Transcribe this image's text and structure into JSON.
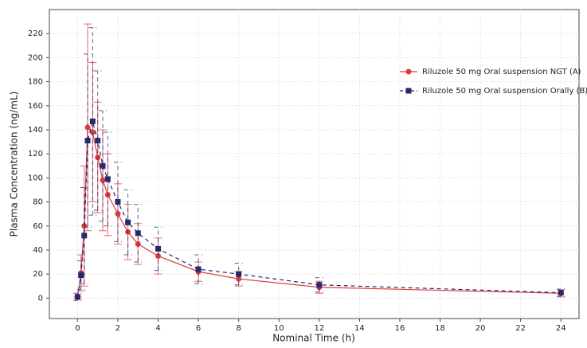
{
  "chart_data": {
    "type": "line",
    "x_label": "Nominal Time (h)",
    "y_label": "Plasma Concentration (ng/mL)",
    "x": [
      0,
      0.17,
      0.33,
      0.5,
      0.75,
      1,
      1.25,
      1.5,
      2,
      2.5,
      3,
      4,
      6,
      8,
      12,
      24
    ],
    "series": [
      {
        "name": "Riluzole 50 mg Oral suspension NGT (A)",
        "color": "#e0393b",
        "linestyle": "solid",
        "marker": "circle",
        "values": [
          0.5,
          21,
          60,
          142,
          138,
          117,
          98,
          86,
          70,
          55,
          45,
          35,
          22,
          16,
          9,
          4
        ],
        "errors": [
          1,
          15,
          50,
          86,
          58,
          46,
          42,
          34,
          25,
          23,
          17,
          15,
          8,
          6,
          5,
          3
        ]
      },
      {
        "name": "Riluzole 50 mg Oral suspension Orally (B)",
        "color": "#26296b",
        "linestyle": "dashed",
        "marker": "square",
        "values": [
          1,
          19,
          52,
          131,
          147,
          131,
          110,
          99,
          80,
          63,
          54,
          41,
          24,
          20,
          11,
          4.5
        ],
        "errors": [
          3,
          12,
          40,
          72,
          78,
          58,
          46,
          39,
          33,
          27,
          24,
          18,
          12,
          9,
          6,
          3
        ]
      }
    ],
    "xlim": [
      -1.4,
      24.9
    ],
    "ylim": [
      -17,
      240
    ],
    "xticks": [
      0,
      2,
      4,
      6,
      8,
      10,
      12,
      14,
      16,
      18,
      20,
      22,
      24
    ],
    "yticks": [
      0,
      20,
      40,
      60,
      80,
      100,
      120,
      140,
      160,
      180,
      200,
      220
    ],
    "grid": true,
    "legend": "upper right"
  }
}
